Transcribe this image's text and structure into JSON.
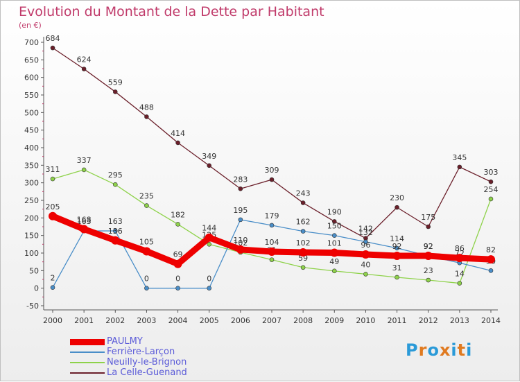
{
  "title": "Evolution du Montant de la Dette par Habitant",
  "unit_label": "(en €)",
  "logo_text": "Proxiti",
  "chart_data": {
    "type": "line",
    "title": "Evolution du Montant de la Dette par Habitant",
    "ylabel": "(en €)",
    "xlabel": "",
    "x": [
      "2000",
      "2001",
      "2002",
      "2003",
      "2004",
      "2005",
      "2006",
      "2007",
      "2008",
      "2009",
      "2010",
      "2011",
      "2012",
      "2013",
      "2014"
    ],
    "ylim": [
      -50,
      700
    ],
    "yticks": [
      -50,
      0,
      50,
      100,
      150,
      200,
      250,
      300,
      350,
      400,
      450,
      500,
      550,
      600,
      650,
      700
    ],
    "grid": false,
    "legend_position": "bottom-left",
    "series": [
      {
        "name": "La Celle-Guenand",
        "color": "#6b1f2a",
        "values": [
          684,
          624,
          559,
          488,
          414,
          349,
          283,
          309,
          243,
          190,
          142,
          230,
          175,
          345,
          303
        ]
      },
      {
        "name": "Neuilly-le-Brignon",
        "color": "#8ed24a",
        "values": [
          311,
          337,
          295,
          235,
          182,
          125,
          102,
          81,
          59,
          49,
          40,
          31,
          23,
          14,
          254
        ]
      },
      {
        "name": "Ferrière-Larçon",
        "color": "#4a8ec8",
        "values": [
          2,
          163,
          163,
          0,
          0,
          0,
          195,
          179,
          162,
          150,
          132,
          114,
          92,
          72,
          50
        ]
      },
      {
        "name": "PAULMY",
        "color": "#ee0000",
        "values": [
          205,
          168,
          136,
          105,
          69,
          144,
          110,
          104,
          102,
          101,
          96,
          92,
          92,
          86,
          82
        ]
      }
    ]
  }
}
